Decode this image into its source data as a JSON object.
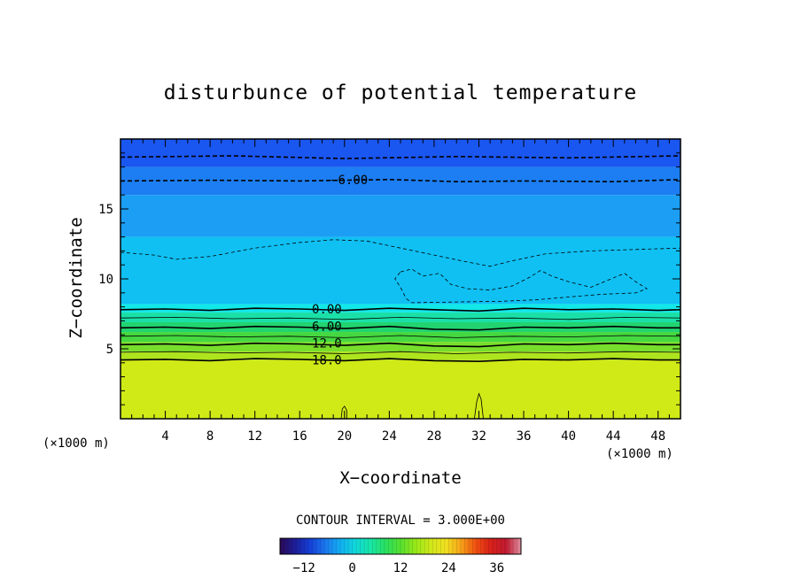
{
  "chart_data": {
    "type": "heatmap",
    "title": "disturbunce of potential temperature",
    "xlabel": "X−coordinate",
    "ylabel": "Z−coordinate",
    "x_unit_left": "(×1000 m)",
    "x_unit_right": "(×1000 m)",
    "xlim": [
      0,
      50
    ],
    "ylim": [
      0,
      20
    ],
    "x_ticks": [
      4,
      8,
      12,
      16,
      20,
      24,
      28,
      32,
      36,
      40,
      44,
      48
    ],
    "y_ticks": [
      5,
      10,
      15
    ],
    "contour_interval_text": "CONTOUR INTERVAL = 3.000E+00",
    "contour_labels": [
      {
        "text": "−6.00",
        "x": 19,
        "z": 17.1
      },
      {
        "text": "0.00",
        "x": 17,
        "z": 7.85
      },
      {
        "text": "6.00",
        "x": 17,
        "z": 6.6
      },
      {
        "text": "12.0",
        "x": 17,
        "z": 5.4
      },
      {
        "text": "18.0",
        "x": 17,
        "z": 4.2
      }
    ],
    "colorbar": {
      "range": [
        -18,
        42
      ],
      "ticks": [
        -12,
        0,
        12,
        24,
        36
      ],
      "colors": [
        "#2a0a55",
        "#1e1e9a",
        "#1540d8",
        "#1a78ee",
        "#12aef2",
        "#10d8da",
        "#18e6a8",
        "#28e060",
        "#55e030",
        "#98e818",
        "#cfe81a",
        "#f0e020",
        "#f6a318",
        "#f05010",
        "#d8201a",
        "#c01a30",
        "#e090a0"
      ]
    },
    "layers": [
      {
        "z_bottom": 18,
        "z_top": 20,
        "color": "#1a56f0"
      },
      {
        "z_bottom": 16,
        "z_top": 18,
        "color": "#1c7ef2"
      },
      {
        "z_bottom": 13,
        "z_top": 16,
        "color": "#1b9ef4"
      },
      {
        "z_bottom": 8.2,
        "z_top": 13,
        "color": "#10c0f3"
      },
      {
        "z_bottom": 7.6,
        "z_top": 8.2,
        "color": "#12e8e8"
      },
      {
        "z_bottom": 6.9,
        "z_top": 7.6,
        "color": "#1ae0a8"
      },
      {
        "z_bottom": 6.2,
        "z_top": 6.9,
        "color": "#22d470"
      },
      {
        "z_bottom": 5.5,
        "z_top": 6.2,
        "color": "#45d840"
      },
      {
        "z_bottom": 4.8,
        "z_top": 5.5,
        "color": "#78de2c"
      },
      {
        "z_bottom": 4.2,
        "z_top": 4.8,
        "color": "#aee41e"
      },
      {
        "z_bottom": 0,
        "z_top": 4.2,
        "color": "#cfea16"
      }
    ],
    "contours": [
      {
        "level": -9,
        "style": "dashed",
        "points": [
          [
            0,
            18.7
          ],
          [
            10,
            18.8
          ],
          [
            20,
            18.6
          ],
          [
            30,
            18.75
          ],
          [
            40,
            18.65
          ],
          [
            50,
            18.8
          ]
        ]
      },
      {
        "level": -6,
        "style": "dashed",
        "points": [
          [
            0,
            17.0
          ],
          [
            8,
            17.05
          ],
          [
            16,
            17.0
          ],
          [
            24,
            17.1
          ],
          [
            30,
            16.95
          ],
          [
            36,
            17.0
          ],
          [
            44,
            16.95
          ],
          [
            50,
            17.1
          ]
        ]
      },
      {
        "level": -3,
        "style": "dashed-thin",
        "points": [
          [
            0,
            11.9
          ],
          [
            3,
            11.7
          ],
          [
            5,
            11.4
          ],
          [
            8,
            11.6
          ],
          [
            12,
            12.2
          ],
          [
            16,
            12.6
          ],
          [
            19,
            12.8
          ],
          [
            22,
            12.7
          ],
          [
            25,
            12.2
          ],
          [
            28,
            11.7
          ],
          [
            31,
            11.2
          ],
          [
            33,
            10.9
          ],
          [
            35,
            11.3
          ],
          [
            38,
            11.8
          ],
          [
            42,
            12.0
          ],
          [
            46,
            12.1
          ],
          [
            50,
            12.2
          ]
        ]
      },
      {
        "level": -3,
        "style": "dashed-thin",
        "points": [
          [
            25,
            10.5
          ],
          [
            26,
            10.7
          ],
          [
            27,
            10.2
          ],
          [
            28.5,
            10.4
          ],
          [
            29.5,
            9.6
          ],
          [
            31,
            9.3
          ],
          [
            33,
            9.2
          ],
          [
            35,
            9.5
          ],
          [
            36.5,
            10.1
          ],
          [
            37.5,
            10.6
          ],
          [
            38.5,
            10.2
          ],
          [
            40,
            9.8
          ],
          [
            42,
            9.4
          ],
          [
            43.5,
            9.9
          ],
          [
            45,
            10.4
          ],
          [
            46,
            9.8
          ],
          [
            47,
            9.3
          ],
          [
            46,
            9.0
          ],
          [
            43,
            8.9
          ],
          [
            40,
            8.7
          ],
          [
            37,
            8.5
          ],
          [
            34,
            8.4
          ],
          [
            30,
            8.35
          ],
          [
            26,
            8.3
          ],
          [
            25.5,
            8.6
          ],
          [
            25,
            9.4
          ],
          [
            24.5,
            10.0
          ],
          [
            25,
            10.5
          ]
        ]
      },
      {
        "level": 0,
        "style": "solid",
        "points": [
          [
            0,
            7.8
          ],
          [
            4,
            7.85
          ],
          [
            8,
            7.75
          ],
          [
            12,
            7.9
          ],
          [
            16,
            7.85
          ],
          [
            20,
            7.75
          ],
          [
            24,
            7.9
          ],
          [
            28,
            7.8
          ],
          [
            32,
            7.7
          ],
          [
            36,
            7.9
          ],
          [
            40,
            7.8
          ],
          [
            44,
            7.85
          ],
          [
            48,
            7.75
          ],
          [
            50,
            7.8
          ]
        ]
      },
      {
        "level": 3,
        "style": "solid-thin",
        "points": [
          [
            0,
            7.2
          ],
          [
            5,
            7.25
          ],
          [
            10,
            7.15
          ],
          [
            15,
            7.2
          ],
          [
            20,
            7.1
          ],
          [
            25,
            7.25
          ],
          [
            30,
            7.15
          ],
          [
            35,
            7.2
          ],
          [
            40,
            7.1
          ],
          [
            45,
            7.25
          ],
          [
            50,
            7.2
          ]
        ]
      },
      {
        "level": 6,
        "style": "solid",
        "points": [
          [
            0,
            6.5
          ],
          [
            4,
            6.55
          ],
          [
            8,
            6.45
          ],
          [
            12,
            6.6
          ],
          [
            16,
            6.55
          ],
          [
            20,
            6.45
          ],
          [
            24,
            6.6
          ],
          [
            28,
            6.4
          ],
          [
            32,
            6.35
          ],
          [
            36,
            6.55
          ],
          [
            40,
            6.5
          ],
          [
            44,
            6.6
          ],
          [
            48,
            6.5
          ],
          [
            50,
            6.5
          ]
        ]
      },
      {
        "level": 9,
        "style": "solid-thin",
        "points": [
          [
            0,
            5.9
          ],
          [
            5,
            5.95
          ],
          [
            10,
            5.85
          ],
          [
            15,
            5.9
          ],
          [
            20,
            5.8
          ],
          [
            25,
            5.95
          ],
          [
            30,
            5.8
          ],
          [
            35,
            5.9
          ],
          [
            40,
            5.85
          ],
          [
            45,
            5.95
          ],
          [
            50,
            5.9
          ]
        ]
      },
      {
        "level": 12,
        "style": "solid",
        "points": [
          [
            0,
            5.3
          ],
          [
            4,
            5.35
          ],
          [
            8,
            5.25
          ],
          [
            12,
            5.4
          ],
          [
            16,
            5.35
          ],
          [
            20,
            5.25
          ],
          [
            24,
            5.4
          ],
          [
            28,
            5.2
          ],
          [
            32,
            5.15
          ],
          [
            36,
            5.35
          ],
          [
            40,
            5.3
          ],
          [
            44,
            5.4
          ],
          [
            48,
            5.3
          ],
          [
            50,
            5.3
          ]
        ]
      },
      {
        "level": 15,
        "style": "solid-thin",
        "points": [
          [
            0,
            4.75
          ],
          [
            5,
            4.8
          ],
          [
            10,
            4.7
          ],
          [
            15,
            4.75
          ],
          [
            20,
            4.65
          ],
          [
            25,
            4.8
          ],
          [
            30,
            4.65
          ],
          [
            35,
            4.75
          ],
          [
            40,
            4.7
          ],
          [
            45,
            4.8
          ],
          [
            50,
            4.75
          ]
        ]
      },
      {
        "level": 18,
        "style": "solid",
        "points": [
          [
            0,
            4.2
          ],
          [
            4,
            4.25
          ],
          [
            8,
            4.15
          ],
          [
            12,
            4.3
          ],
          [
            16,
            4.25
          ],
          [
            20,
            4.15
          ],
          [
            24,
            4.3
          ],
          [
            28,
            4.15
          ],
          [
            32,
            4.1
          ],
          [
            36,
            4.25
          ],
          [
            40,
            4.2
          ],
          [
            44,
            4.3
          ],
          [
            48,
            4.2
          ],
          [
            50,
            4.2
          ]
        ]
      },
      {
        "level": 21,
        "style": "solid-thin",
        "points": [
          [
            19.7,
            0
          ],
          [
            19.8,
            0.7
          ],
          [
            20,
            0.9
          ],
          [
            20.2,
            0.6
          ],
          [
            20.2,
            0
          ]
        ]
      },
      {
        "level": 21,
        "style": "solid-thin",
        "points": [
          [
            31.6,
            0
          ],
          [
            31.8,
            1.2
          ],
          [
            32,
            1.8
          ],
          [
            32.2,
            1.4
          ],
          [
            32.4,
            0
          ]
        ]
      }
    ]
  }
}
